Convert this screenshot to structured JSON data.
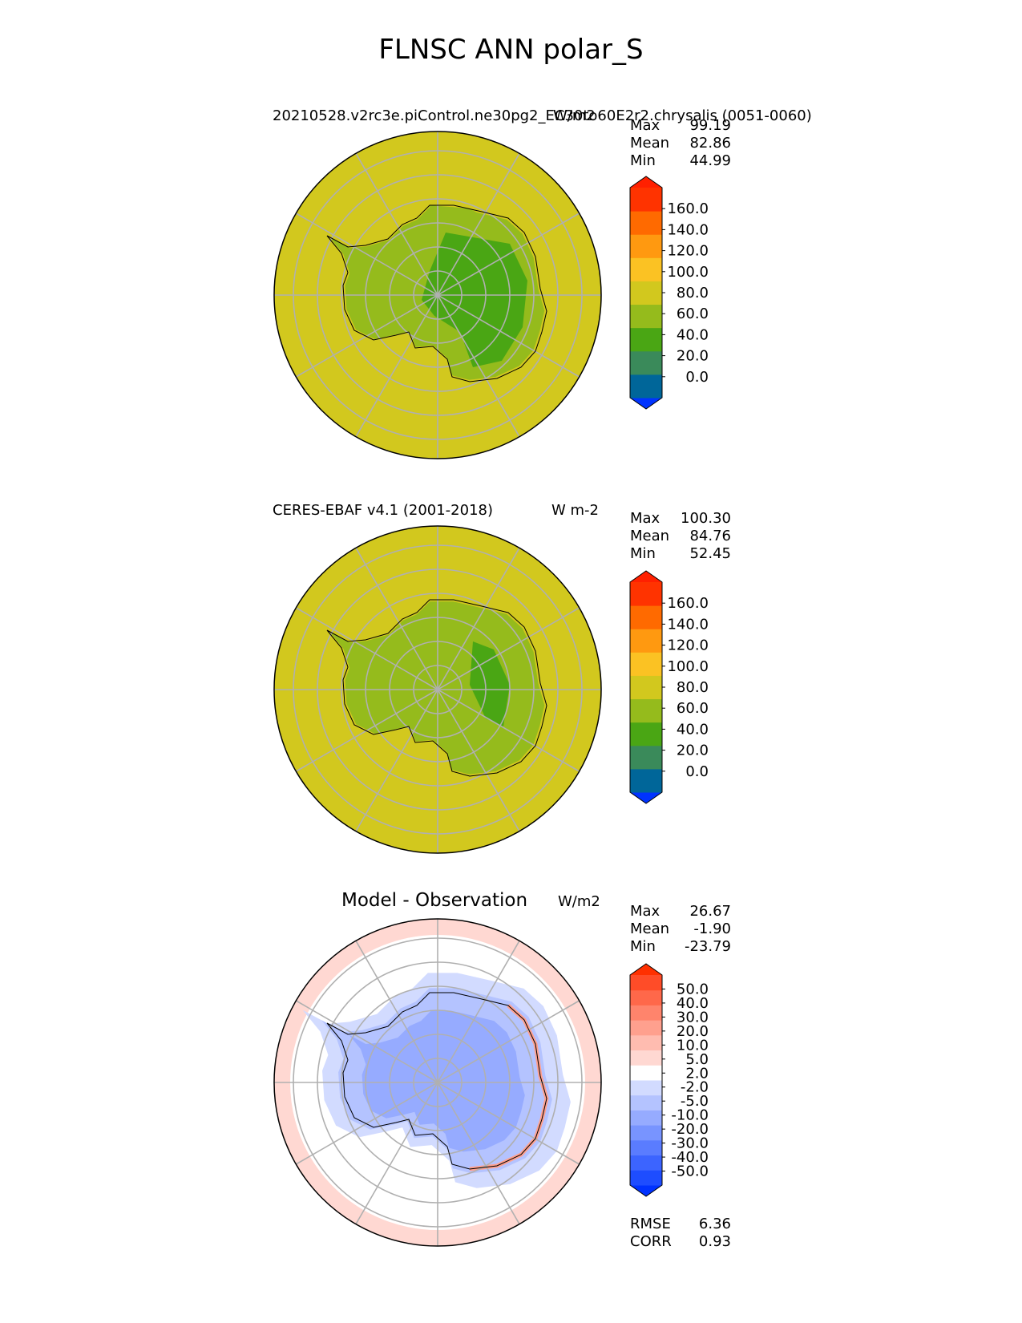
{
  "figure": {
    "title": "FLNSC ANN polar_S"
  },
  "panels": [
    {
      "id": "test",
      "title_left": "20210528.v2rc3e.piControl.ne30pg2_EC30to60E2r2.chrysalis (0051-0060)",
      "title_right": "W/m2",
      "stats": {
        "Max": "99.19",
        "Mean": "82.86",
        "Min": "44.99"
      },
      "colorbar": {
        "colors": [
          "#0033ff",
          "#006699",
          "#3a8a5a",
          "#4aa614",
          "#95bb1c",
          "#d2c81e",
          "#fbc223",
          "#ff9910",
          "#ff6a00",
          "#ff3300",
          "#ff2000"
        ],
        "tick_labels": [
          "0.0",
          "20.0",
          "40.0",
          "60.0",
          "80.0",
          "100.0",
          "120.0",
          "140.0",
          "160.0"
        ]
      }
    },
    {
      "id": "reference",
      "title_left": "CERES-EBAF v4.1 (2001-2018)",
      "title_right": "W m-2",
      "stats": {
        "Max": "100.30",
        "Mean": "84.76",
        "Min": "52.45"
      },
      "colorbar": {
        "colors": [
          "#0033ff",
          "#006699",
          "#3a8a5a",
          "#4aa614",
          "#95bb1c",
          "#d2c81e",
          "#fbc223",
          "#ff9910",
          "#ff6a00",
          "#ff3300",
          "#ff2000"
        ],
        "tick_labels": [
          "0.0",
          "20.0",
          "40.0",
          "60.0",
          "80.0",
          "100.0",
          "120.0",
          "140.0",
          "160.0"
        ]
      }
    },
    {
      "id": "diff",
      "title_center": "Model - Observation",
      "title_right": "W/m2",
      "stats": {
        "Max": "26.67",
        "Mean": "-1.90",
        "Min": "-23.79"
      },
      "extra_stats": {
        "RMSE": "6.36",
        "CORR": "0.93"
      },
      "colorbar": {
        "colors": [
          "#0032ff",
          "#1e4dff",
          "#3c64ff",
          "#5a7cff",
          "#7894ff",
          "#96abff",
          "#b4c3ff",
          "#d2dbff",
          "#ffffff",
          "#ffd8d2",
          "#ffbcb0",
          "#ffa08e",
          "#ff846c",
          "#ff684a",
          "#ff4c28",
          "#ff3000"
        ],
        "tick_labels": [
          "-50.0",
          "-40.0",
          "-30.0",
          "-20.0",
          "-10.0",
          "-5.0",
          "-2.0",
          "2.0",
          "5.0",
          "10.0",
          "20.0",
          "30.0",
          "40.0",
          "50.0"
        ]
      }
    }
  ],
  "chart_data": [
    {
      "type": "heatmap",
      "title": "20210528.v2rc3e.piControl.ne30pg2_EC30to60E2r2.chrysalis (0051-0060)",
      "units": "W/m2",
      "projection": "south polar stereographic",
      "colorbar_levels": [
        0,
        20,
        40,
        60,
        80,
        100,
        120,
        140,
        160
      ],
      "stats": {
        "max": 99.19,
        "mean": 82.86,
        "min": 44.99
      }
    },
    {
      "type": "heatmap",
      "title": "CERES-EBAF v4.1 (2001-2018)",
      "units": "W m-2",
      "projection": "south polar stereographic",
      "colorbar_levels": [
        0,
        20,
        40,
        60,
        80,
        100,
        120,
        140,
        160
      ],
      "stats": {
        "max": 100.3,
        "mean": 84.76,
        "min": 52.45
      }
    },
    {
      "type": "heatmap",
      "title": "Model - Observation",
      "units": "W/m2",
      "projection": "south polar stereographic",
      "colorbar_levels": [
        -50,
        -40,
        -30,
        -20,
        -10,
        -5,
        -2,
        2,
        5,
        10,
        20,
        30,
        40,
        50
      ],
      "stats": {
        "max": 26.67,
        "mean": -1.9,
        "min": -23.79,
        "rmse": 6.36,
        "corr": 0.93
      }
    }
  ]
}
